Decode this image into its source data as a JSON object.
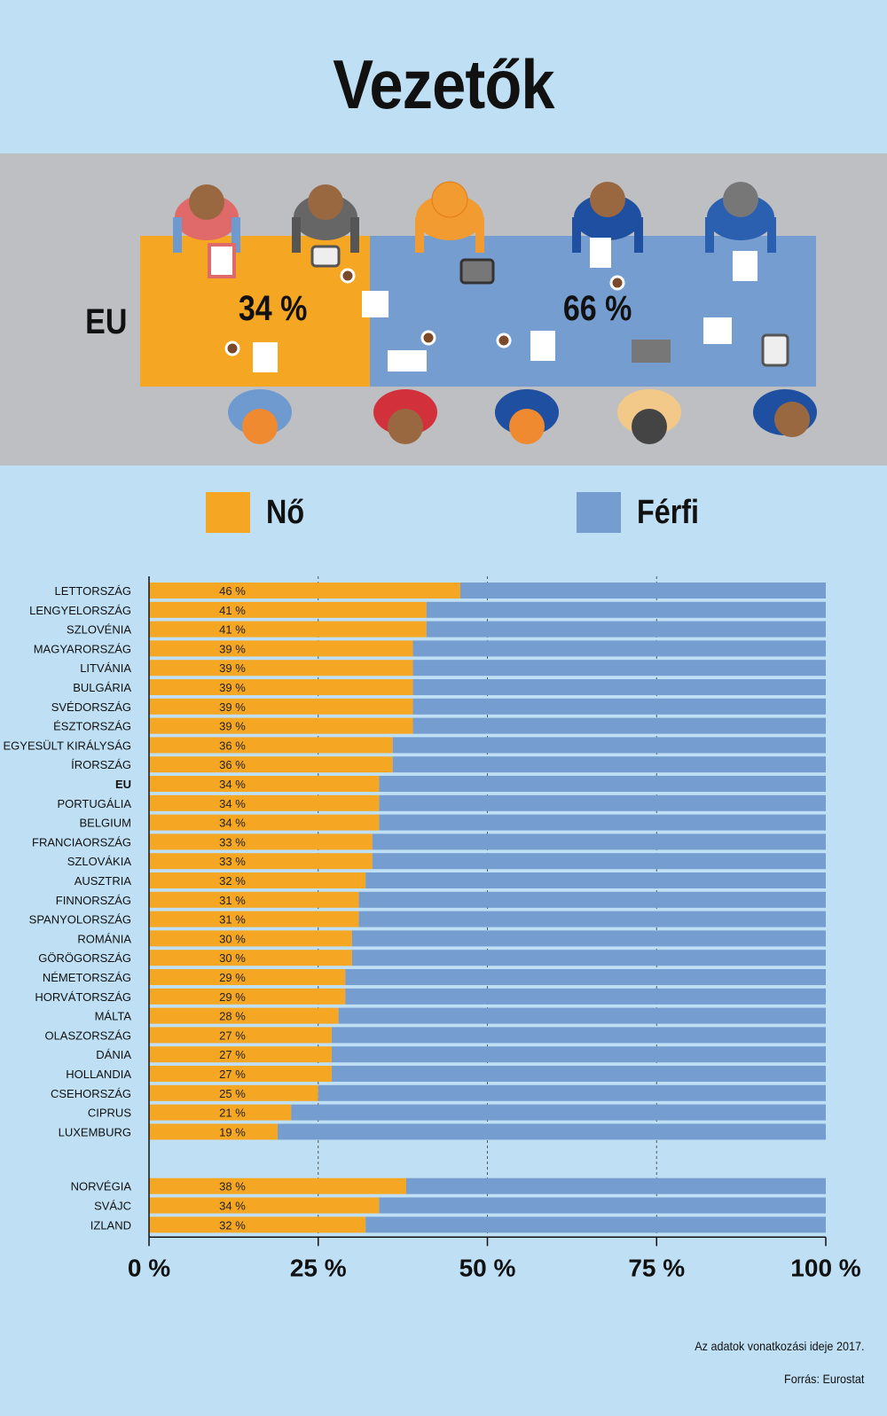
{
  "title": "Vezetők",
  "eu_panel": {
    "label": "EU",
    "female_pct": "34 %",
    "male_pct": "66 %",
    "female_value": 34
  },
  "legend": [
    {
      "label": "Nő",
      "color": "#f5a623"
    },
    {
      "label": "Férfi",
      "color": "#769dd0"
    }
  ],
  "chart_data": {
    "type": "bar",
    "orientation": "horizontal",
    "stacked": true,
    "categories": [
      "LETTORSZÁG",
      "LENGYELORSZÁG",
      "SZLOVÉNIA",
      "MAGYARORSZÁG",
      "LITVÁNIA",
      "BULGÁRIA",
      "SVÉDORSZÁG",
      "ÉSZTORSZÁG",
      "EGYESÜLT KIRÁLYSÁG",
      "ÍRORSZÁG",
      "EU",
      "PORTUGÁLIA",
      "BELGIUM",
      "FRANCIAORSZÁG",
      "SZLOVÁKIA",
      "AUSZTRIA",
      "FINNORSZÁG",
      "SPANYOLORSZÁG",
      "ROMÁNIA",
      "GÖRÖGORSZÁG",
      "NÉMETORSZÁG",
      "HORVÁTORSZÁG",
      "MÁLTA",
      "OLASZORSZÁG",
      "DÁNIA",
      "HOLLANDIA",
      "CSEHORSZÁG",
      "CIPRUS",
      "LUXEMBURG",
      "NORVÉGIA",
      "SVÁJC",
      "IZLAND"
    ],
    "series": [
      {
        "name": "Nő",
        "color": "#f5a623",
        "values": [
          46,
          41,
          41,
          39,
          39,
          39,
          39,
          39,
          36,
          36,
          34,
          34,
          34,
          33,
          33,
          32,
          31,
          31,
          30,
          30,
          29,
          29,
          28,
          27,
          27,
          27,
          25,
          21,
          19,
          38,
          34,
          32
        ]
      },
      {
        "name": "Férfi",
        "color": "#769dd0",
        "values": [
          54,
          59,
          59,
          61,
          61,
          61,
          61,
          61,
          64,
          64,
          66,
          66,
          66,
          67,
          67,
          68,
          69,
          69,
          70,
          70,
          71,
          71,
          72,
          73,
          73,
          73,
          75,
          79,
          81,
          62,
          66,
          68
        ]
      }
    ],
    "value_labels": [
      "46 %",
      "41 %",
      "41 %",
      "39 %",
      "39 %",
      "39 %",
      "39 %",
      "39 %",
      "36 %",
      "36 %",
      "34 %",
      "34 %",
      "34 %",
      "33 %",
      "33 %",
      "32 %",
      "31 %",
      "31 %",
      "30 %",
      "30 %",
      "29 %",
      "29 %",
      "28 %",
      "27 %",
      "27 %",
      "27 %",
      "25 %",
      "21 %",
      "19 %",
      "38 %",
      "34 %",
      "32 %"
    ],
    "highlight_category": "EU",
    "xlim": [
      0,
      100
    ],
    "x_ticks": [
      0,
      25,
      50,
      75,
      100
    ],
    "x_tick_labels": [
      "0 %",
      "25 %",
      "50 %",
      "75 %",
      "100 %"
    ],
    "grid": "vertical dashed at ticks",
    "legend_position": "top"
  },
  "footnote": "Az adatok vonatkozási ideje 2017.",
  "source": "Forrás: Eurostat"
}
